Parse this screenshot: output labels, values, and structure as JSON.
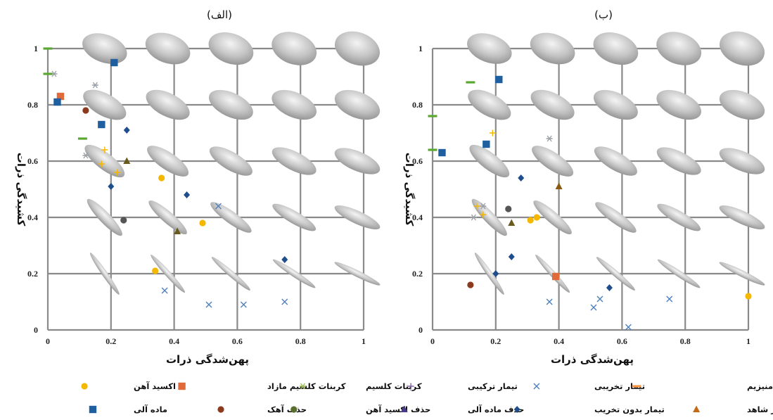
{
  "chart_data": [
    {
      "type": "scatter",
      "title": "(الف)",
      "xlabel": "پهن‌شدگی ذرات",
      "ylabel": "کشیدگی ذرات",
      "xlim": [
        0,
        1
      ],
      "ylim": [
        0,
        1
      ],
      "xticks": [
        "0",
        "0.2",
        "0.4",
        "0.6",
        "0.8",
        "1"
      ],
      "yticks": [
        "0",
        "0.2",
        "0.4",
        "0.6",
        "0.8",
        "1"
      ],
      "grid": true,
      "series": [
        {
          "key": "iron_oxide",
          "points": [
            [
              0.36,
              0.54
            ],
            [
              0.49,
              0.38
            ],
            [
              0.34,
              0.21
            ]
          ]
        },
        {
          "key": "free_caco3",
          "points": [
            [
              0.04,
              0.83
            ]
          ]
        },
        {
          "key": "caco3",
          "points": [
            [
              0.02,
              0.91
            ],
            [
              0.15,
              0.87
            ],
            [
              0.12,
              0.62
            ]
          ]
        },
        {
          "key": "combined",
          "points": [
            [
              0.18,
              0.64
            ],
            [
              0.17,
              0.59
            ],
            [
              0.22,
              0.56
            ]
          ]
        },
        {
          "key": "destructive",
          "points": [
            [
              0.37,
              0.14
            ],
            [
              0.51,
              0.09
            ],
            [
              0.62,
              0.09
            ],
            [
              0.75,
              0.1
            ],
            [
              0.54,
              0.44
            ]
          ]
        },
        {
          "key": "ca_mg",
          "points": [
            [
              0.0,
              1.0
            ],
            [
              0.0,
              0.91
            ],
            [
              0.11,
              0.68
            ]
          ]
        },
        {
          "key": "organic",
          "points": [
            [
              0.21,
              0.95
            ],
            [
              0.03,
              0.81
            ],
            [
              0.17,
              0.73
            ]
          ]
        },
        {
          "key": "lime_removed",
          "points": [
            [
              0.12,
              0.78
            ]
          ]
        },
        {
          "key": "iron_oxide_removed",
          "points": [
            [
              0.24,
              0.39
            ]
          ]
        },
        {
          "key": "organic_removed",
          "points": [
            [
              0.25,
              0.6
            ],
            [
              0.41,
              0.35
            ]
          ]
        },
        {
          "key": "nondestructive",
          "points": [
            [
              0.25,
              0.71
            ],
            [
              0.2,
              0.51
            ],
            [
              0.44,
              0.48
            ],
            [
              0.75,
              0.25
            ]
          ]
        },
        {
          "key": "control",
          "points": []
        }
      ]
    },
    {
      "type": "scatter",
      "title": "(ب)",
      "xlabel": "پهن‌شدگی ذرات",
      "ylabel": "کشیدگی ذرات",
      "xlim": [
        0,
        1
      ],
      "ylim": [
        0,
        1
      ],
      "xticks": [
        "0",
        "0.2",
        "0.4",
        "0.6",
        "0.8",
        "1"
      ],
      "yticks": [
        "0",
        "0.2",
        "0.4",
        "0.6",
        "0.8",
        "1"
      ],
      "grid": true,
      "series": [
        {
          "key": "iron_oxide",
          "points": [
            [
              0.31,
              0.39
            ],
            [
              0.33,
              0.4
            ],
            [
              1.0,
              0.12
            ]
          ]
        },
        {
          "key": "free_caco3",
          "points": [
            [
              0.39,
              0.19
            ]
          ]
        },
        {
          "key": "caco3",
          "points": [
            [
              0.37,
              0.68
            ],
            [
              0.16,
              0.44
            ],
            [
              0.13,
              0.4
            ]
          ]
        },
        {
          "key": "combined",
          "points": [
            [
              0.19,
              0.7
            ],
            [
              0.14,
              0.44
            ],
            [
              0.16,
              0.41
            ]
          ]
        },
        {
          "key": "destructive",
          "points": [
            [
              0.37,
              0.1
            ],
            [
              0.51,
              0.08
            ],
            [
              0.53,
              0.11
            ],
            [
              0.62,
              0.01
            ],
            [
              0.75,
              0.11
            ]
          ]
        },
        {
          "key": "ca_mg",
          "points": [
            [
              0.0,
              0.76
            ],
            [
              0.0,
              0.64
            ],
            [
              0.12,
              0.88
            ]
          ]
        },
        {
          "key": "organic",
          "points": [
            [
              0.21,
              0.89
            ],
            [
              0.17,
              0.66
            ],
            [
              0.03,
              0.63
            ]
          ]
        },
        {
          "key": "lime_removed",
          "points": [
            [
              0.12,
              0.16
            ]
          ]
        },
        {
          "key": "iron_oxide_removed",
          "points": [
            [
              0.24,
              0.43
            ]
          ]
        },
        {
          "key": "organic_removed",
          "points": [
            [
              0.25,
              0.38
            ]
          ]
        },
        {
          "key": "nondestructive",
          "points": [
            [
              0.28,
              0.54
            ],
            [
              0.25,
              0.26
            ],
            [
              0.2,
              0.2
            ],
            [
              0.56,
              0.15
            ]
          ]
        },
        {
          "key": "control",
          "points": [
            [
              0.4,
              0.51
            ]
          ]
        }
      ]
    }
  ],
  "legend": [
    {
      "key": "iron_oxide",
      "label": "اکسید آهن",
      "marker": "circle",
      "color": "#f5b800"
    },
    {
      "key": "free_caco3",
      "label": "کربنات کلسیم مازاد",
      "marker": "square",
      "color": "#e06a3a"
    },
    {
      "key": "caco3",
      "label": "کربنات کلسیم",
      "marker": "asterisk",
      "color": "#9bbb59"
    },
    {
      "key": "combined",
      "label": "تیمار ترکیبی",
      "marker": "plus",
      "color": "#8064a2"
    },
    {
      "key": "destructive",
      "label": "تیمار تخریبی",
      "marker": "x",
      "color": "#4f81bd"
    },
    {
      "key": "ca_mg",
      "label": "کاتیونهای کلسیم و منیزیم",
      "marker": "dash",
      "color": "#f79646"
    },
    {
      "key": "organic",
      "label": "ماده آلی",
      "marker": "square",
      "color": "#1f5fa0"
    },
    {
      "key": "lime_removed",
      "label": "حذف آهک",
      "marker": "circle",
      "color": "#8b3a1e"
    },
    {
      "key": "iron_oxide_removed",
      "label": "حذف اکسید آهن",
      "marker": "circle",
      "color": "#5a6e2e"
    },
    {
      "key": "organic_removed",
      "label": "حذف ماده آلی",
      "marker": "triangle",
      "color": "#4b3a8c"
    },
    {
      "key": "nondestructive",
      "label": "تیمار بدون تخریب",
      "marker": "diamond",
      "color": "#1f4e8c"
    },
    {
      "key": "control",
      "label": "تیمار شاهد",
      "marker": "triangle",
      "color": "#c46a16"
    }
  ],
  "marker_colors": {
    "iron_oxide": "#f5b800",
    "free_caco3": "#e06a3a",
    "caco3": "#9aa0a6",
    "combined": "#f5b800",
    "destructive": "#4f81bd",
    "ca_mg": "#5aa832",
    "organic": "#1f5fa0",
    "lime_removed": "#8b3a1e",
    "iron_oxide_removed": "#555555",
    "organic_removed": "#6a5a20",
    "nondestructive": "#1f4e8c",
    "control": "#8a5a10"
  }
}
